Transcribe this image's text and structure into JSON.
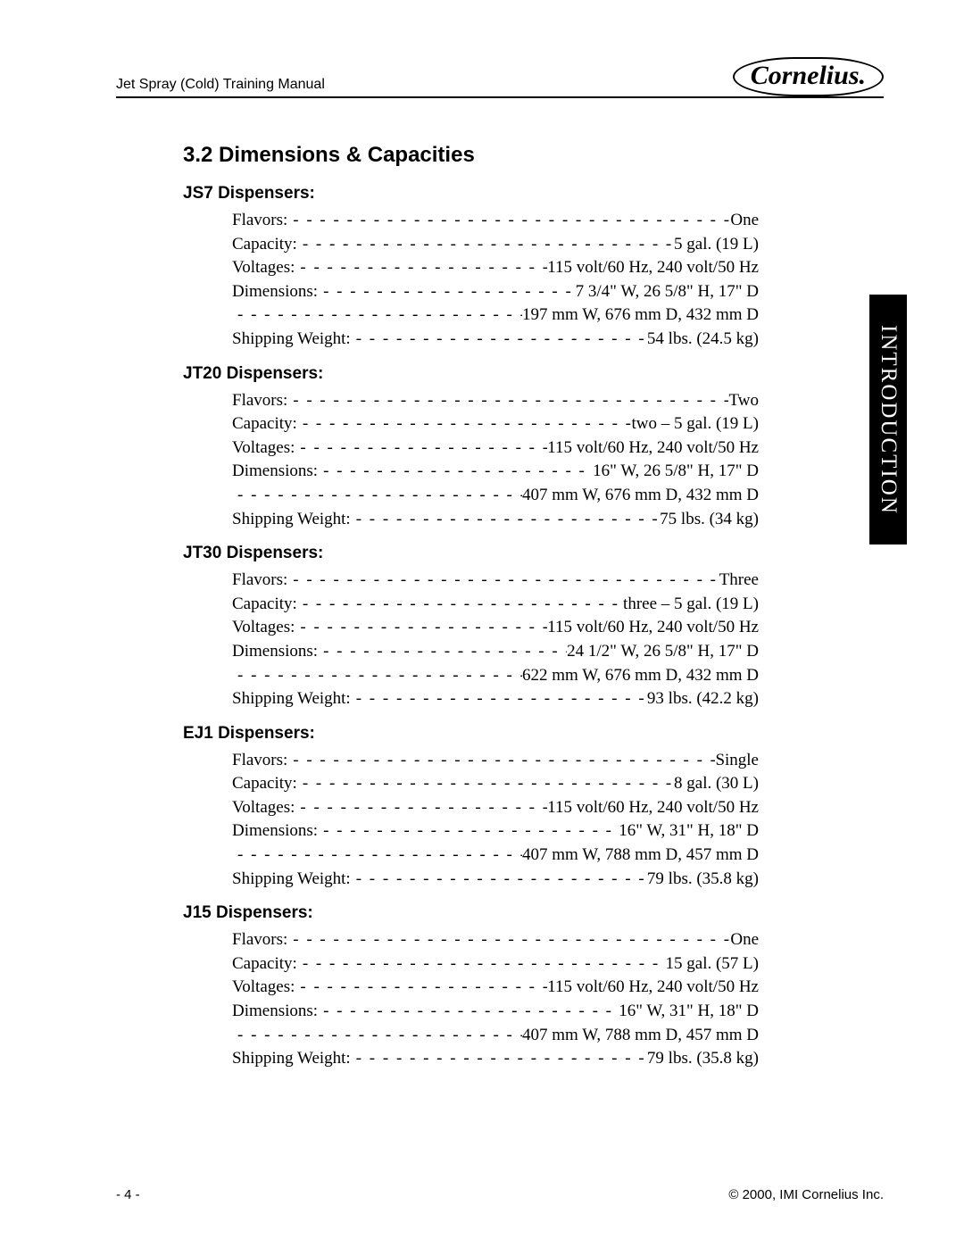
{
  "header": {
    "left": "Jet Spray (Cold) Training Manual",
    "logo_text": "Cornelius."
  },
  "side_tab": "INTRODUCTION",
  "section_title": "3.2  Dimensions & Capacities",
  "groups": [
    {
      "title": "JS7 Dispensers:",
      "rows": [
        {
          "label": "Flavors:",
          "value": "One"
        },
        {
          "label": "Capacity:",
          "value": "5 gal. (19 L)"
        },
        {
          "label": "Voltages:",
          "value": "115 volt/60 Hz, 240 volt/50 Hz"
        },
        {
          "label": "Dimensions:",
          "value": "7 3/4\" W, 26 5/8\" H, 17\" D"
        },
        {
          "label": "",
          "value": "197 mm W, 676 mm D, 432 mm D"
        },
        {
          "label": "Shipping Weight:",
          "value": "54 lbs. (24.5 kg)"
        }
      ]
    },
    {
      "title": "JT20 Dispensers:",
      "rows": [
        {
          "label": "Flavors:",
          "value": "Two"
        },
        {
          "label": "Capacity:",
          "value": "two – 5 gal. (19 L)"
        },
        {
          "label": "Voltages:",
          "value": "115 volt/60 Hz, 240 volt/50 Hz"
        },
        {
          "label": "Dimensions:",
          "value": "16\" W, 26 5/8\" H, 17\" D"
        },
        {
          "label": "",
          "value": "407 mm W, 676 mm D, 432 mm D"
        },
        {
          "label": "Shipping Weight:",
          "value": "75 lbs. (34 kg)"
        }
      ]
    },
    {
      "title": "JT30 Dispensers:",
      "rows": [
        {
          "label": "Flavors:",
          "value": "Three"
        },
        {
          "label": "Capacity:",
          "value": "three – 5 gal. (19 L)"
        },
        {
          "label": "Voltages:",
          "value": "115 volt/60 Hz, 240 volt/50 Hz"
        },
        {
          "label": "Dimensions:",
          "value": "24 1/2\" W, 26 5/8\" H, 17\" D"
        },
        {
          "label": "",
          "value": "622 mm W, 676 mm D, 432 mm D"
        },
        {
          "label": "Shipping Weight:",
          "value": "93 lbs. (42.2 kg)"
        }
      ]
    },
    {
      "title": "EJ1 Dispensers:",
      "rows": [
        {
          "label": "Flavors:",
          "value": "Single"
        },
        {
          "label": "Capacity:",
          "value": "8 gal. (30 L)"
        },
        {
          "label": "Voltages:",
          "value": "115 volt/60 Hz, 240 volt/50 Hz"
        },
        {
          "label": "Dimensions:",
          "value": "16\" W, 31\" H, 18\" D"
        },
        {
          "label": "",
          "value": "407 mm W, 788 mm D, 457 mm D"
        },
        {
          "label": "Shipping Weight:",
          "value": "79 lbs. (35.8 kg)"
        }
      ]
    },
    {
      "title": "J15 Dispensers:",
      "rows": [
        {
          "label": "Flavors:",
          "value": "One"
        },
        {
          "label": "Capacity:",
          "value": "15 gal. (57 L)"
        },
        {
          "label": "Voltages:",
          "value": "115 volt/60 Hz, 240 volt/50 Hz"
        },
        {
          "label": "Dimensions:",
          "value": "16\" W, 31\" H, 18\" D"
        },
        {
          "label": "",
          "value": "407 mm W, 788 mm D, 457 mm D"
        },
        {
          "label": "Shipping Weight:",
          "value": "79 lbs. (35.8 kg)"
        }
      ]
    }
  ],
  "footer": {
    "page": "- 4 -",
    "copyright": "© 2000, IMI Cornelius Inc."
  }
}
